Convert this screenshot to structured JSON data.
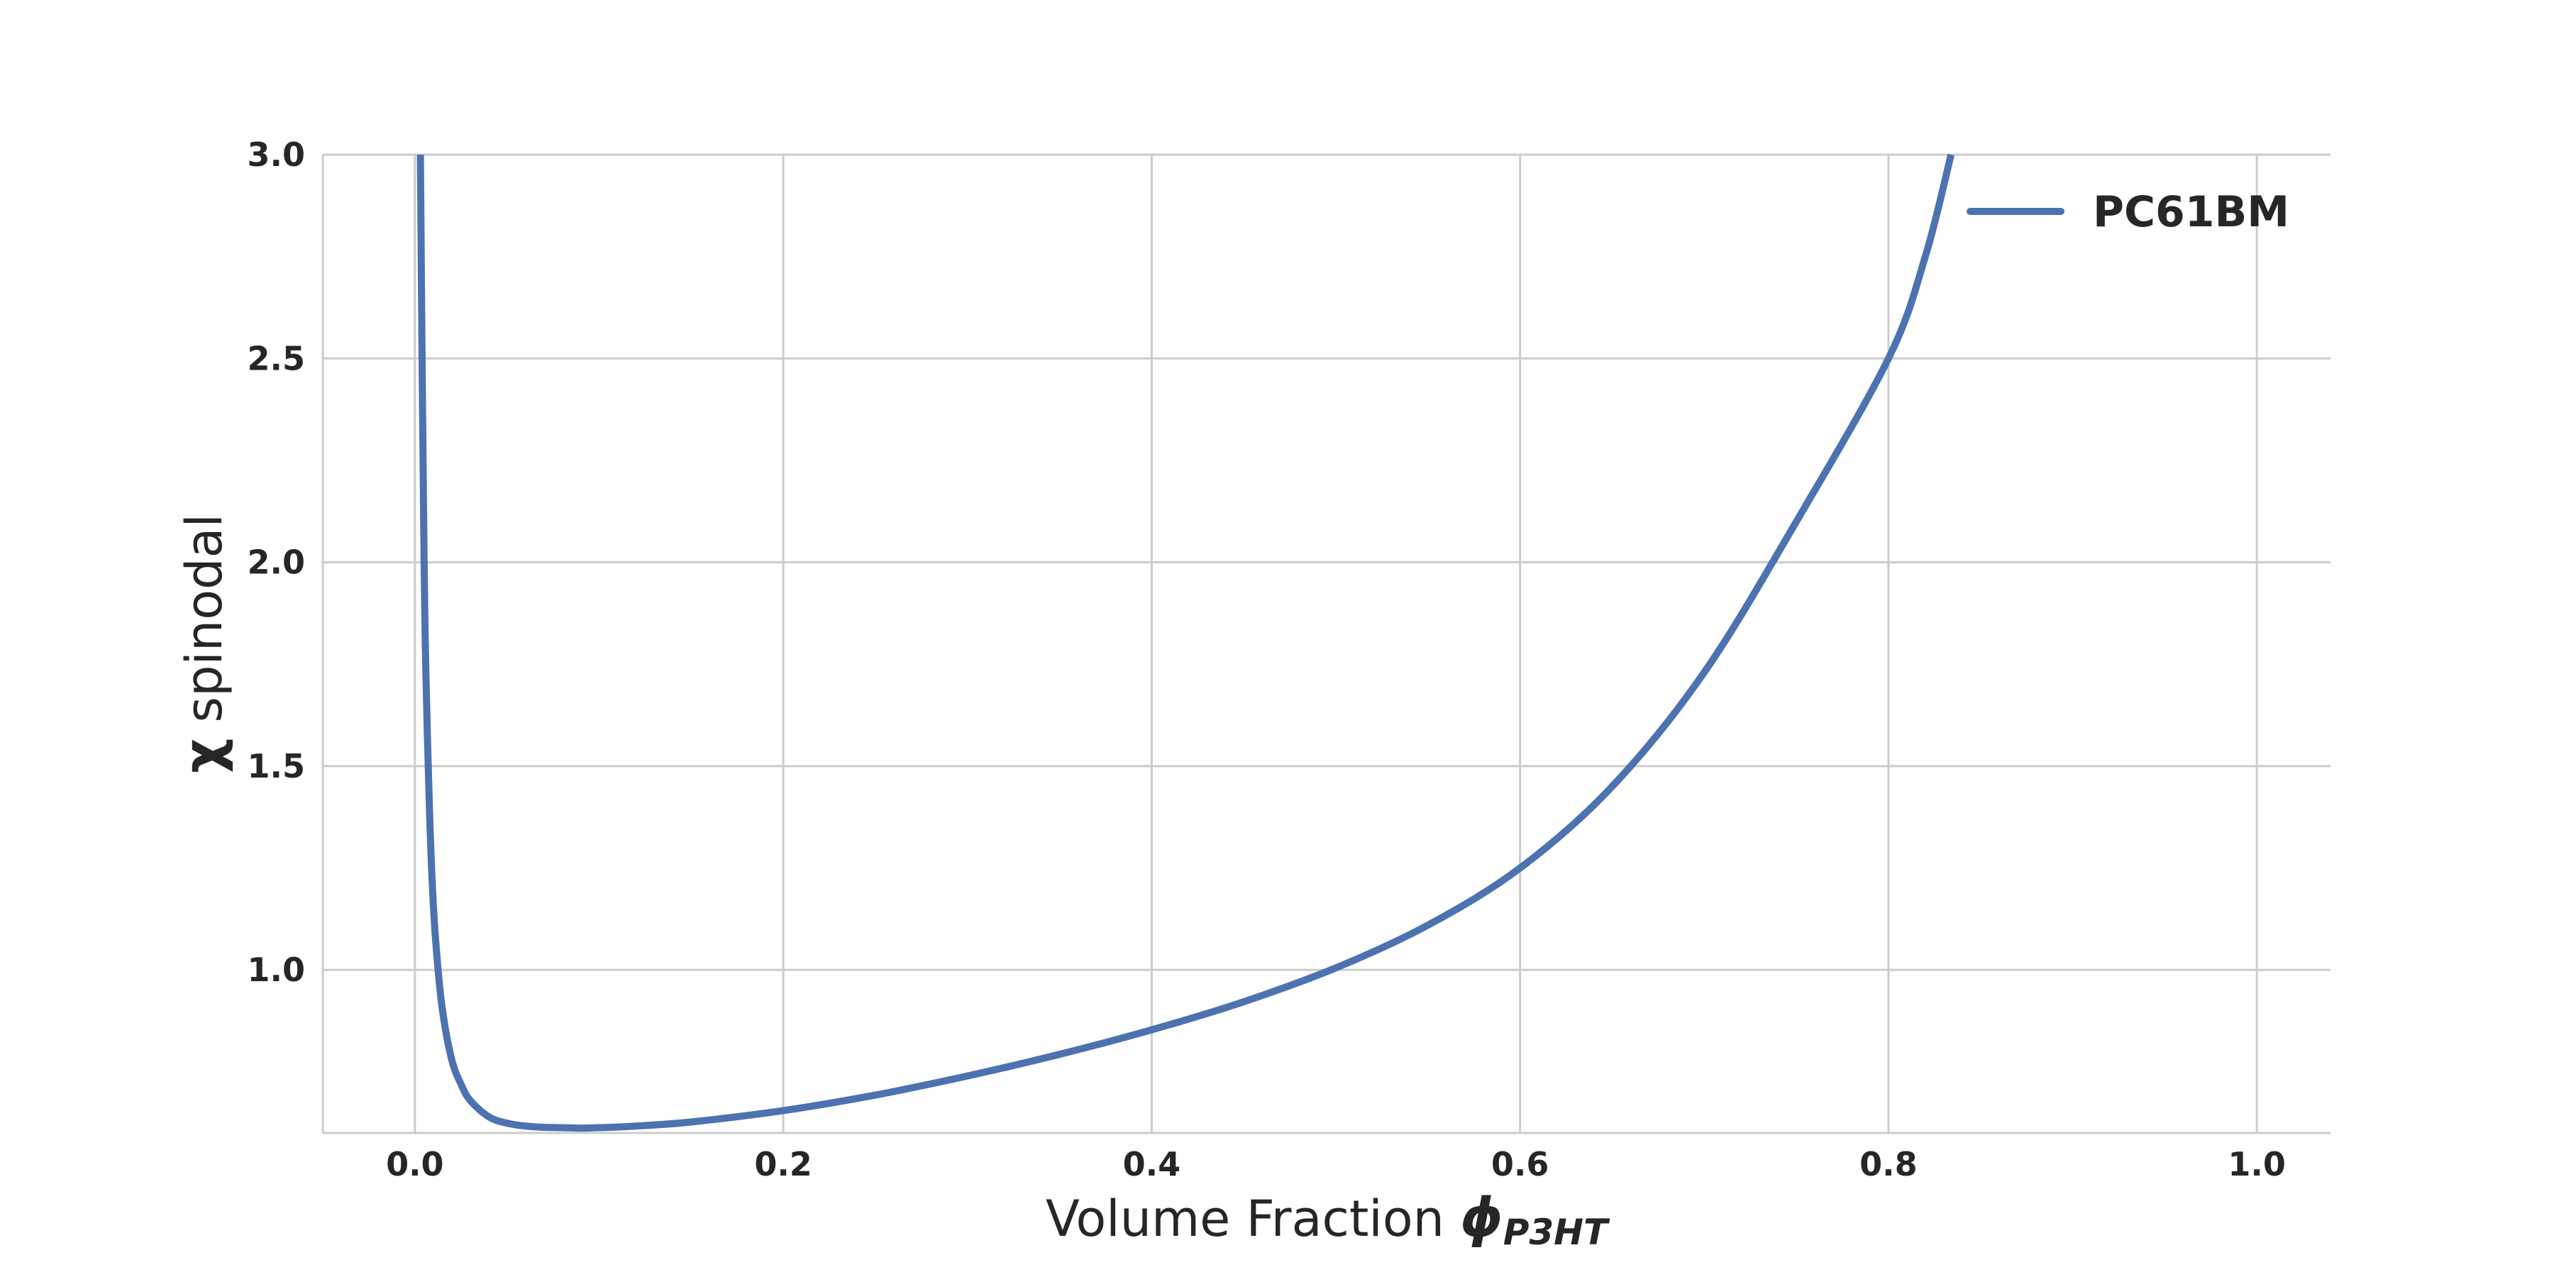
{
  "chart_data": {
    "type": "line",
    "x_range": [
      -0.05,
      1.04
    ],
    "ylim": [
      0.6,
      3.0
    ],
    "x_ticks": [
      "0.0",
      "0.2",
      "0.4",
      "0.6",
      "0.8",
      "1.0"
    ],
    "x_tick_values": [
      0.0,
      0.2,
      0.4,
      0.6,
      0.8,
      1.0
    ],
    "y_ticks": [
      "1.0",
      "1.5",
      "2.0",
      "2.5",
      "3.0"
    ],
    "y_tick_values": [
      1.0,
      1.5,
      2.0,
      2.5,
      3.0
    ],
    "xlabel": {
      "text": "Volume Fraction ",
      "symbol": "ϕ",
      "subscript": "P3HT"
    },
    "ylabel": {
      "symbol": "χ",
      "text": " spinodal"
    },
    "grid": true,
    "legend_position": "top-right",
    "series": [
      {
        "name": "PC61BM",
        "color": "#4c72b0",
        "x": [
          0.003,
          0.004,
          0.005,
          0.006,
          0.008,
          0.01,
          0.012,
          0.015,
          0.02,
          0.025,
          0.03,
          0.04,
          0.05,
          0.06,
          0.07,
          0.08,
          0.09,
          0.1,
          0.12,
          0.15,
          0.2,
          0.25,
          0.3,
          0.35,
          0.4,
          0.45,
          0.5,
          0.55,
          0.6,
          0.65,
          0.7,
          0.75,
          0.8,
          0.82,
          0.834
        ],
        "y": [
          3.0,
          2.45,
          2.0,
          1.72,
          1.38,
          1.16,
          1.03,
          0.9,
          0.78,
          0.72,
          0.68,
          0.64,
          0.624,
          0.617,
          0.614,
          0.613,
          0.612,
          0.613,
          0.617,
          0.627,
          0.655,
          0.693,
          0.74,
          0.793,
          0.853,
          0.922,
          1.005,
          1.11,
          1.25,
          1.45,
          1.73,
          2.1,
          2.5,
          2.75,
          3.0
        ]
      }
    ]
  }
}
